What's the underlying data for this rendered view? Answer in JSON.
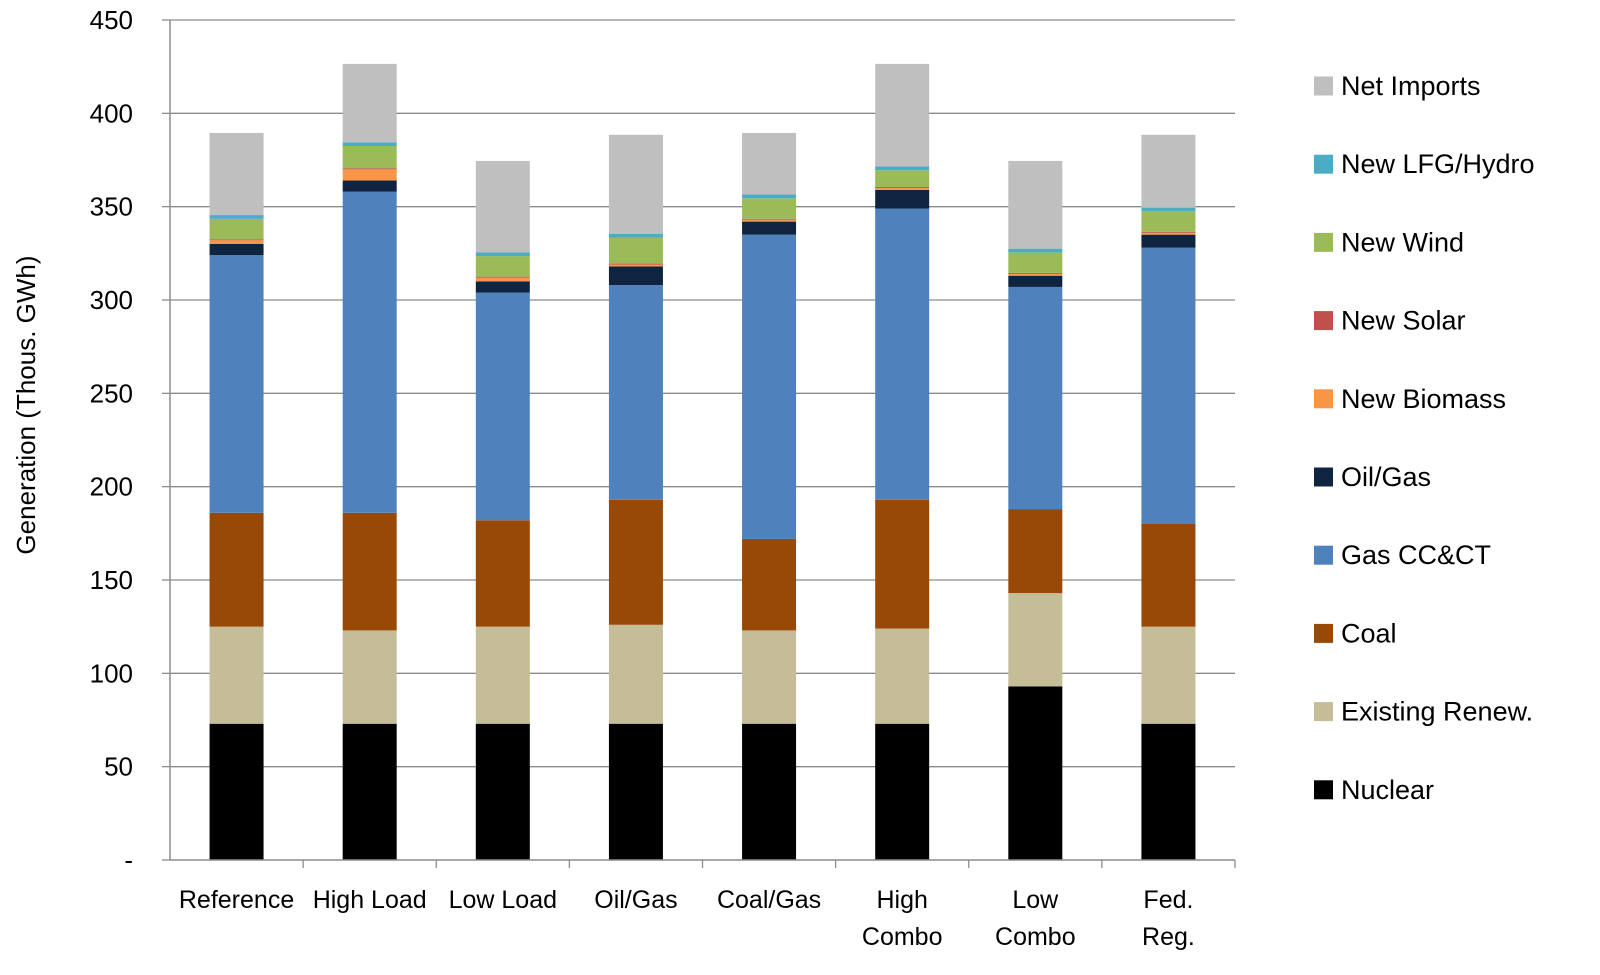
{
  "chart_data": {
    "type": "bar",
    "stacked": true,
    "title": "",
    "xlabel": "",
    "ylabel": "Generation (Thous. GWh)",
    "ylim": [
      0,
      450
    ],
    "yticks": [
      {
        "value": 0,
        "label": "-"
      },
      {
        "value": 50,
        "label": "50"
      },
      {
        "value": 100,
        "label": "100"
      },
      {
        "value": 150,
        "label": "150"
      },
      {
        "value": 200,
        "label": "200"
      },
      {
        "value": 250,
        "label": "250"
      },
      {
        "value": 300,
        "label": "300"
      },
      {
        "value": 350,
        "label": "350"
      },
      {
        "value": 400,
        "label": "400"
      },
      {
        "value": 450,
        "label": "450"
      }
    ],
    "grid": true,
    "legend_position": "right",
    "categories": [
      [
        "Reference"
      ],
      [
        "High Load"
      ],
      [
        "Low Load"
      ],
      [
        "Oil/Gas"
      ],
      [
        "Coal/Gas"
      ],
      [
        "High",
        "Combo"
      ],
      [
        "Low",
        "Combo"
      ],
      [
        "Fed.",
        "Reg."
      ]
    ],
    "series": [
      {
        "name": "Nuclear",
        "color": "#000000",
        "values": [
          73,
          73,
          73,
          73,
          73,
          73,
          93,
          73
        ]
      },
      {
        "name": "Existing Renew.",
        "color": "#c4bd97",
        "values": [
          52,
          50,
          52,
          53,
          50,
          51,
          50,
          52
        ]
      },
      {
        "name": "Coal",
        "color": "#984807",
        "values": [
          61,
          63,
          57,
          67,
          49,
          69,
          45,
          55
        ]
      },
      {
        "name": "Gas CC&CT",
        "color": "#4f81bd",
        "values": [
          138,
          172,
          122,
          115,
          163,
          156,
          119,
          148
        ]
      },
      {
        "name": "Oil/Gas",
        "color": "#0f243e",
        "values": [
          6,
          6,
          6,
          10,
          7,
          10,
          6,
          7
        ]
      },
      {
        "name": "New Biomass",
        "color": "#f79646",
        "values": [
          2,
          6,
          2,
          1,
          1,
          1,
          1,
          1
        ]
      },
      {
        "name": "New Solar",
        "color": "#c0504d",
        "values": [
          0.5,
          0.5,
          0.5,
          0.5,
          0.5,
          0.5,
          0.5,
          0.5
        ]
      },
      {
        "name": "New Wind",
        "color": "#9bbb59",
        "values": [
          11,
          12,
          11,
          14,
          11,
          9,
          11,
          11
        ]
      },
      {
        "name": "New LFG/Hydro",
        "color": "#4bacc6",
        "values": [
          2,
          2,
          2,
          2,
          2,
          2,
          2,
          2
        ]
      },
      {
        "name": "Net Imports",
        "color": "#bfbfbf",
        "values": [
          44,
          42,
          49,
          53,
          33,
          55,
          47,
          39
        ]
      }
    ]
  }
}
